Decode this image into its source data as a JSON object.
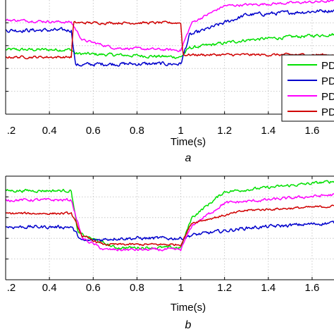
{
  "colors": {
    "green": "#00e000",
    "blue": "#0000cc",
    "magenta": "#ff00ff",
    "red": "#d00000",
    "grid": "#bdbdbd",
    "axis": "#000000"
  },
  "chart_data": [
    {
      "type": "line",
      "panel_label": "a",
      "xlabel": "Time(s)",
      "ylabel": "",
      "xlim": [
        0.2,
        1.7
      ],
      "ylim": [
        0,
        1
      ],
      "x_ticks": [
        0.2,
        0.4,
        0.6,
        0.8,
        1.0,
        1.2,
        1.4,
        1.6
      ],
      "x_tick_labels": [
        ".2",
        "0.4",
        "0.6",
        "0.8",
        "1",
        "1.2",
        "1.4",
        "1.6"
      ],
      "y_ticks": [
        0.2,
        0.4,
        0.6,
        0.8
      ],
      "y_tick_labels": [
        "",
        "",
        "",
        ""
      ],
      "grid": true,
      "legend": {
        "placement": "right",
        "entries": [
          "PD",
          "PD",
          "PD",
          "PD"
        ]
      },
      "series": [
        {
          "color": "green",
          "noise": 0.025,
          "points": [
            [
              0.2,
              0.565
            ],
            [
              0.5,
              0.565
            ],
            [
              0.52,
              0.53
            ],
            [
              1.0,
              0.5
            ],
            [
              1.04,
              0.58
            ],
            [
              1.3,
              0.65
            ],
            [
              1.7,
              0.7
            ]
          ]
        },
        {
          "color": "blue",
          "noise": 0.03,
          "points": [
            [
              0.2,
              0.735
            ],
            [
              0.5,
              0.735
            ],
            [
              0.52,
              0.43
            ],
            [
              0.65,
              0.44
            ],
            [
              1.0,
              0.44
            ],
            [
              1.04,
              0.69
            ],
            [
              1.3,
              0.87
            ],
            [
              1.7,
              0.91
            ]
          ]
        },
        {
          "color": "magenta",
          "noise": 0.02,
          "points": [
            [
              0.2,
              0.825
            ],
            [
              0.5,
              0.805
            ],
            [
              0.55,
              0.65
            ],
            [
              0.7,
              0.58
            ],
            [
              1.0,
              0.56
            ],
            [
              1.05,
              0.8
            ],
            [
              1.2,
              0.95
            ],
            [
              1.7,
              0.99
            ]
          ]
        },
        {
          "color": "red",
          "noise": 0.02,
          "points": [
            [
              0.2,
              0.5
            ],
            [
              0.5,
              0.5
            ],
            [
              0.51,
              0.8
            ],
            [
              1.0,
              0.8
            ],
            [
              1.01,
              0.52
            ],
            [
              1.7,
              0.52
            ]
          ]
        }
      ]
    },
    {
      "type": "line",
      "panel_label": "b",
      "xlabel": "Time(s)",
      "ylabel": "",
      "xlim": [
        0.2,
        1.7
      ],
      "ylim": [
        0,
        1
      ],
      "x_ticks": [
        0.2,
        0.4,
        0.6,
        0.8,
        1.0,
        1.2,
        1.4,
        1.6
      ],
      "x_tick_labels": [
        ".2",
        "0.4",
        "0.6",
        "0.8",
        "1",
        "1.2",
        "1.4",
        "1.6"
      ],
      "y_ticks": [
        0.2,
        0.4,
        0.6,
        0.8
      ],
      "y_tick_labels": [
        "",
        "",
        "",
        ""
      ],
      "grid": true,
      "legend": null,
      "series": [
        {
          "color": "green",
          "noise": 0.025,
          "points": [
            [
              0.2,
              0.86
            ],
            [
              0.5,
              0.86
            ],
            [
              0.53,
              0.45
            ],
            [
              0.7,
              0.31
            ],
            [
              1.0,
              0.31
            ],
            [
              1.05,
              0.6
            ],
            [
              1.2,
              0.85
            ],
            [
              1.7,
              0.95
            ]
          ]
        },
        {
          "color": "blue",
          "noise": 0.03,
          "points": [
            [
              0.2,
              0.51
            ],
            [
              0.5,
              0.51
            ],
            [
              0.55,
              0.37
            ],
            [
              0.7,
              0.4
            ],
            [
              1.0,
              0.4
            ],
            [
              1.05,
              0.43
            ],
            [
              1.3,
              0.5
            ],
            [
              1.7,
              0.55
            ]
          ]
        },
        {
          "color": "magenta",
          "noise": 0.025,
          "points": [
            [
              0.2,
              0.77
            ],
            [
              0.5,
              0.77
            ],
            [
              0.55,
              0.4
            ],
            [
              0.65,
              0.29
            ],
            [
              1.0,
              0.29
            ],
            [
              1.05,
              0.52
            ],
            [
              1.2,
              0.74
            ],
            [
              1.7,
              0.82
            ]
          ]
        },
        {
          "color": "red",
          "noise": 0.02,
          "points": [
            [
              0.2,
              0.64
            ],
            [
              0.5,
              0.64
            ],
            [
              0.55,
              0.42
            ],
            [
              0.65,
              0.34
            ],
            [
              1.0,
              0.34
            ],
            [
              1.05,
              0.55
            ],
            [
              1.3,
              0.67
            ],
            [
              1.7,
              0.71
            ]
          ]
        }
      ]
    }
  ]
}
